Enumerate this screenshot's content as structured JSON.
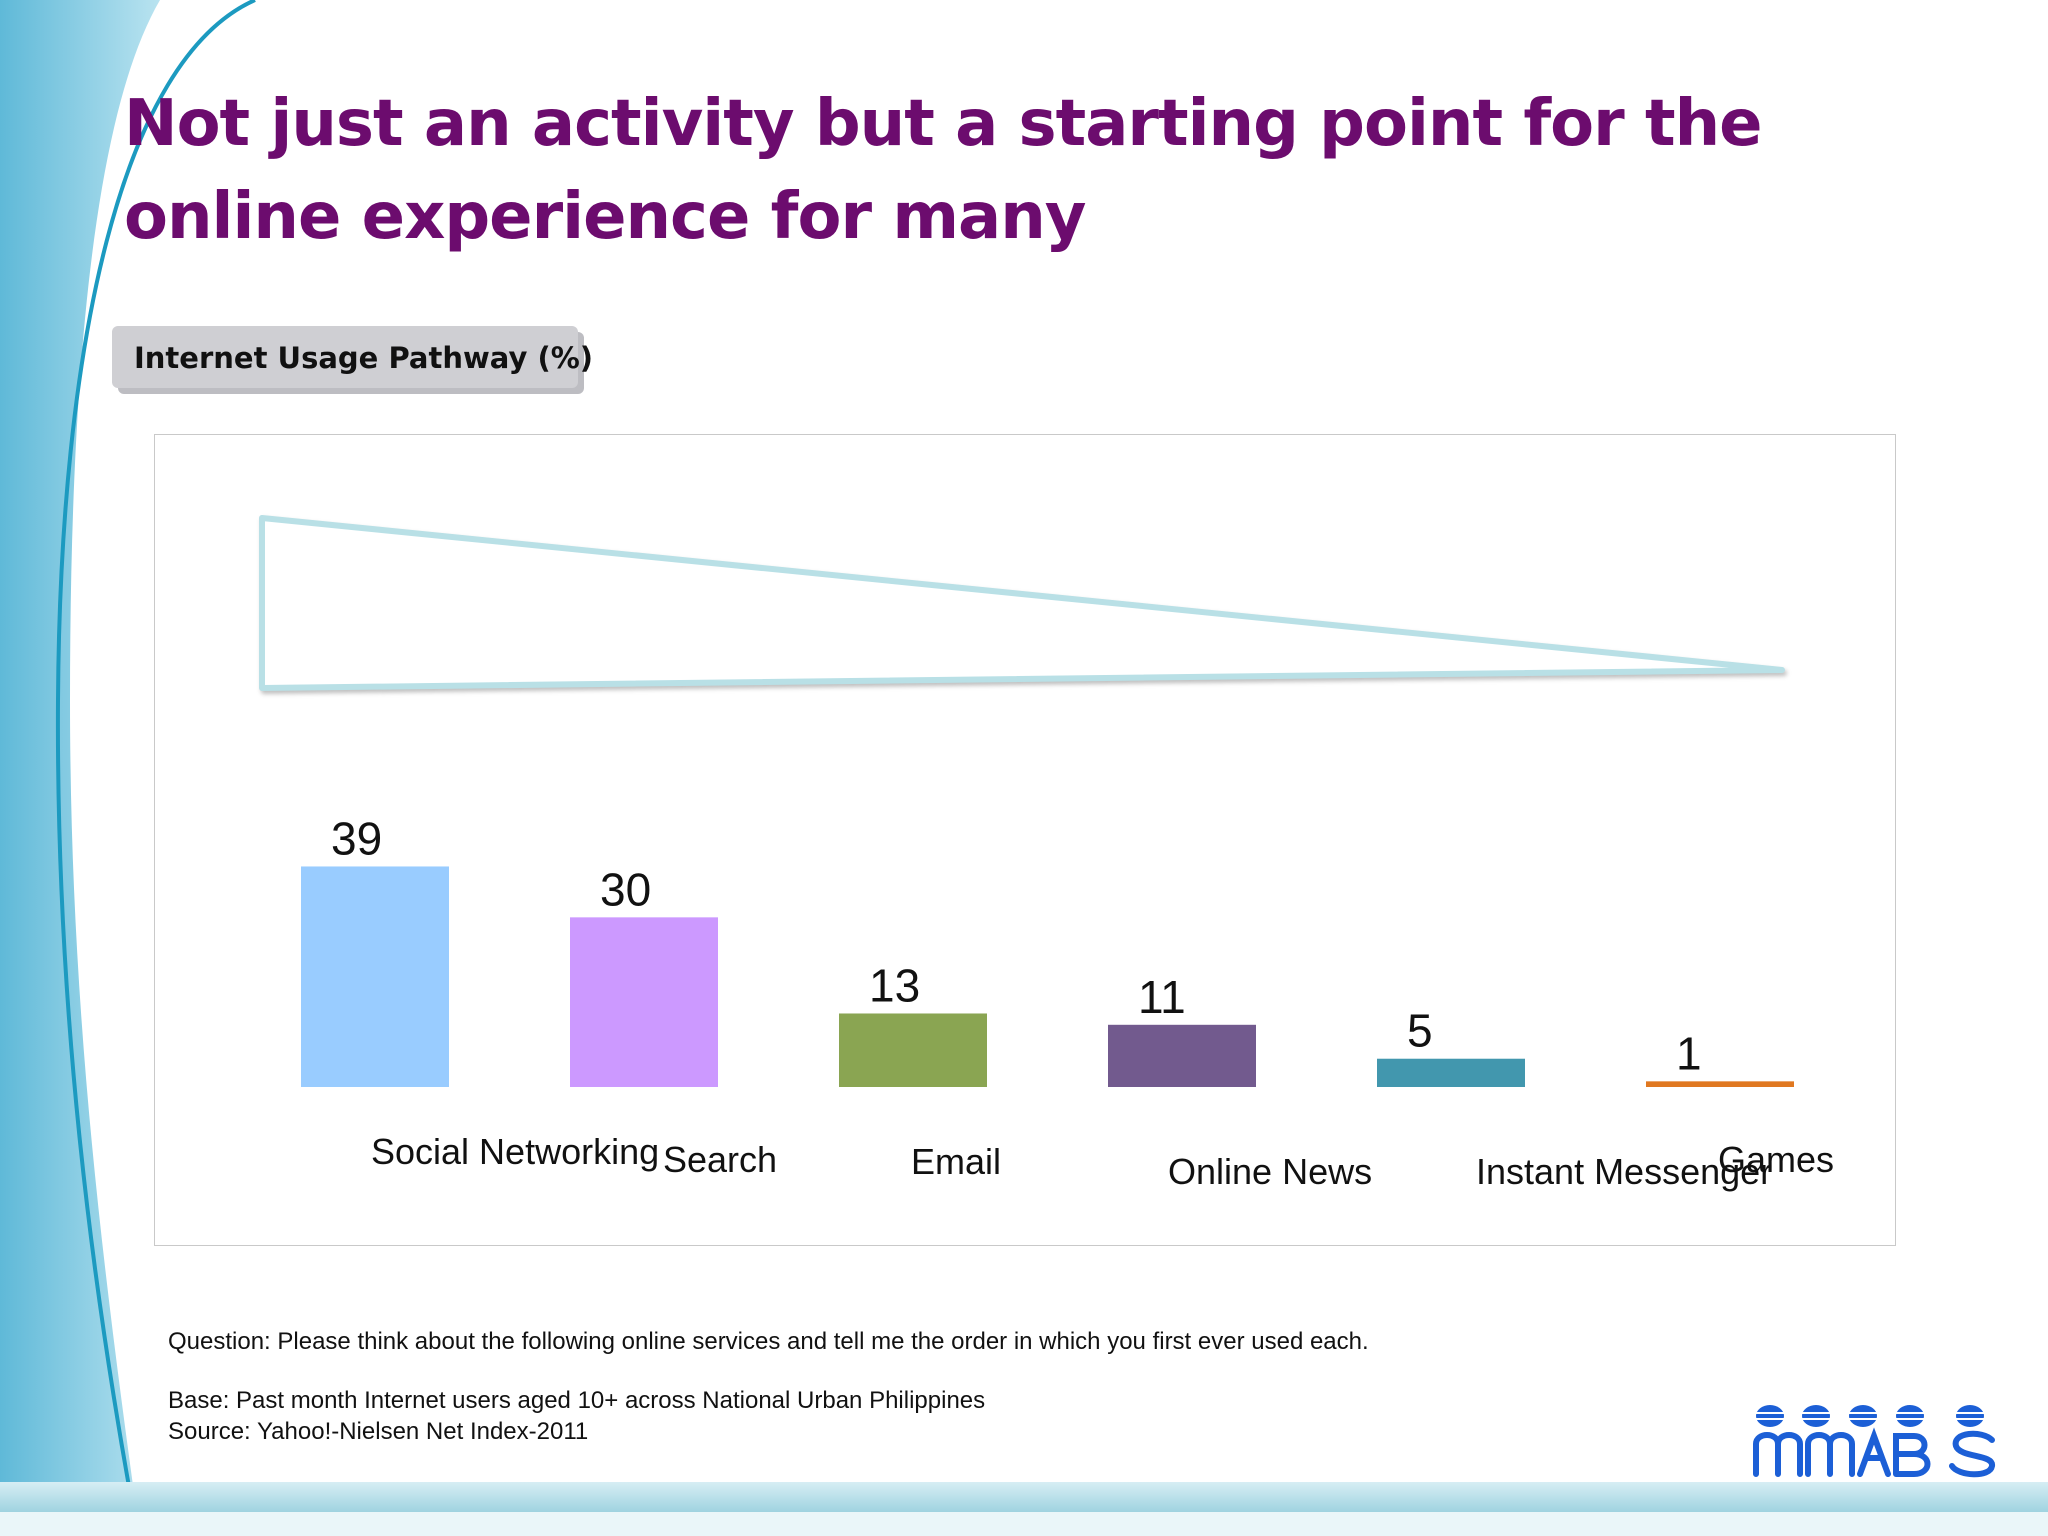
{
  "slide": {
    "title": "Not just an activity but a starting point for the online experience for many",
    "subtitle": "Internet Usage Pathway (%)"
  },
  "chart_data": {
    "type": "bar",
    "title": "",
    "xlabel": "",
    "ylabel": "",
    "categories": [
      "Social Networking",
      "Search",
      "Email",
      "Online News",
      "Instant Messenger",
      "Games"
    ],
    "values": [
      39,
      30,
      13,
      11,
      5,
      1
    ],
    "colors": [
      "#99ccff",
      "#cc99ff",
      "#8aa552",
      "#725a8e",
      "#4297ae",
      "#e07820"
    ],
    "ylim": [
      0,
      40
    ],
    "grid": false,
    "legend": "none"
  },
  "notes": {
    "question": "Question: Please think about the following online services and tell me the order in which you first ever used each.",
    "base": "Base: Past month Internet users aged 10+ across National Urban Philippines",
    "source": "Source: Yahoo!-Nielsen Net Index-2011"
  },
  "theme": {
    "title_color": "#6c0c6e",
    "swoosh_color": "#79c6e0",
    "logo_color": "#1c5fd6"
  },
  "logo": {
    "icon": "mrbs-logo-icon",
    "text": "mrbs"
  }
}
